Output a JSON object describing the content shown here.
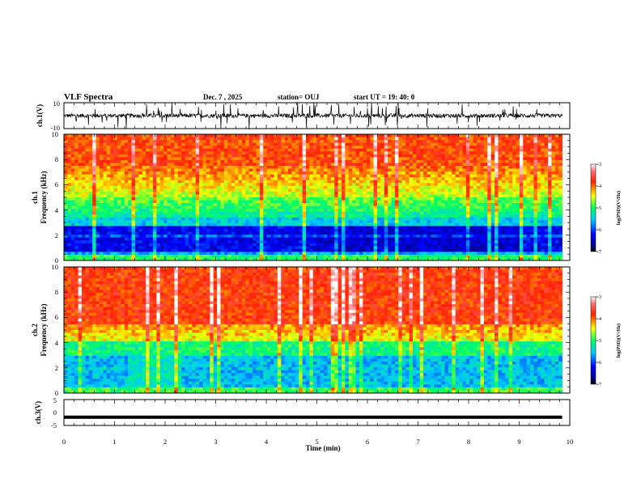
{
  "header": {
    "title": "VLF Spectra",
    "date": "Dec. 7 , 2025",
    "station": "station= OUJ",
    "start": "start  UT  =   19: 40: 0"
  },
  "chart_data": [
    {
      "type": "line",
      "id": "ch1-waveform",
      "ylabel": "ch.1(V)",
      "ylim": [
        -10,
        10
      ],
      "yticks": [
        "10",
        "-10"
      ],
      "xlim": [
        0,
        10
      ],
      "baseline": 0,
      "color": "#000000"
    },
    {
      "type": "heatmap",
      "id": "ch1-spectrogram",
      "ylabel_line1": "ch.1",
      "ylabel_line2": "Frequency (kHz)",
      "xlim": [
        0,
        10
      ],
      "ylim": [
        0,
        10
      ],
      "yticks": [
        "0",
        "2",
        "4",
        "6",
        "8",
        "10"
      ],
      "data_end_min": 9.85,
      "colorbar": {
        "label": "log(PSD)(V²/Hz)",
        "range": [
          -7,
          -3
        ],
        "ticks": [
          "-3",
          "-4",
          "-5",
          "-6",
          "-7"
        ]
      }
    },
    {
      "type": "heatmap",
      "id": "ch2-spectrogram",
      "ylabel_line1": "ch.2",
      "ylabel_line2": "Frequency (kHz)",
      "xlim": [
        0,
        10
      ],
      "ylim": [
        0,
        10
      ],
      "yticks": [
        "0",
        "2",
        "4",
        "6",
        "8",
        "10"
      ],
      "data_end_min": 9.85,
      "colorbar": {
        "label": "log(PSD)(V²/Hz)",
        "range": [
          -7,
          -3
        ],
        "ticks": [
          "-3",
          "-4",
          "-5",
          "-6",
          "-7"
        ]
      }
    },
    {
      "type": "line",
      "id": "ch3-waveform",
      "ylabel": "ch.3(V)",
      "ylim": [
        -5,
        5
      ],
      "yticks": [
        "5",
        "0",
        "-5"
      ],
      "xlim": [
        0,
        10
      ],
      "value": -1.8,
      "color": "#000000"
    }
  ],
  "xaxis": {
    "label": "Time  (min)",
    "ticks": [
      "0",
      "1",
      "2",
      "3",
      "4",
      "5",
      "6",
      "7",
      "8",
      "9",
      "10"
    ],
    "range": [
      0,
      10
    ]
  }
}
